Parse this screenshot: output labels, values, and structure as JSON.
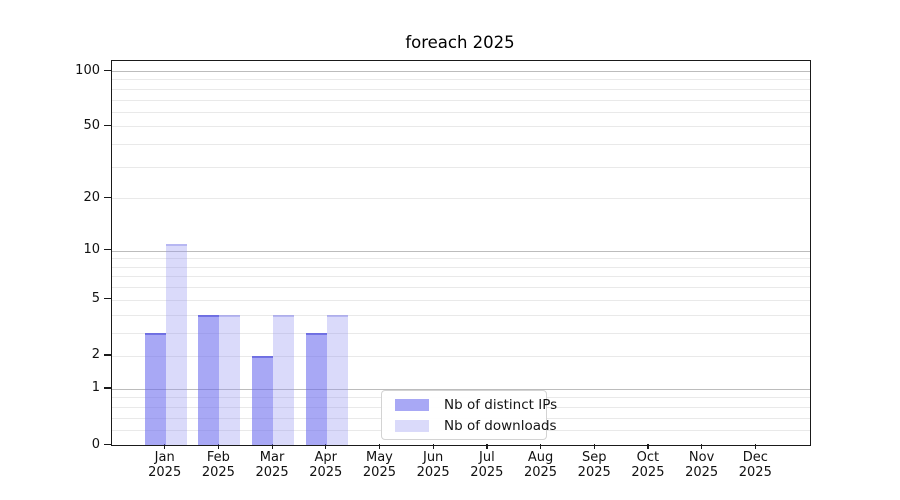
{
  "chart_data": {
    "type": "bar",
    "title": "foreach 2025",
    "categories": [
      "Jan",
      "Feb",
      "Mar",
      "Apr",
      "May",
      "Jun",
      "Jul",
      "Aug",
      "Sep",
      "Oct",
      "Nov",
      "Dec"
    ],
    "category_year": "2025",
    "series": [
      {
        "name": "Nb of distinct IPs",
        "values": [
          3,
          4,
          2,
          3,
          0,
          0,
          0,
          0,
          0,
          0,
          0,
          0
        ],
        "fill": "rgba(102,102,238,0.57)",
        "edge": "rgba(70,70,215,0.55)"
      },
      {
        "name": "Nb of downloads",
        "values": [
          11,
          4,
          4,
          4,
          0,
          0,
          0,
          0,
          0,
          0,
          0,
          0
        ],
        "fill": "rgba(150,150,240,0.35)",
        "edge": "rgba(130,130,230,0.40)"
      }
    ],
    "y_axis": {
      "scale": "log1p",
      "ticks": [
        0,
        1,
        2,
        5,
        10,
        20,
        50,
        100
      ],
      "y_max": 113.3,
      "major_gridlines": [
        1,
        10,
        100
      ],
      "minor_gridlines": [
        0.2,
        0.4,
        0.6,
        0.8,
        2,
        3,
        4,
        5,
        6,
        7,
        8,
        9,
        20,
        30,
        40,
        50,
        60,
        70,
        80,
        90
      ]
    },
    "x_axis": {
      "tick_label_lines": 2
    },
    "legend": {
      "position": "lower-center-left"
    },
    "colors": {
      "minor_grid": "#e9e9e9",
      "major_grid": "#bcbcbc",
      "spine": "#1a1a1a",
      "tick_text": "#111111",
      "title_text": "#000000"
    }
  }
}
